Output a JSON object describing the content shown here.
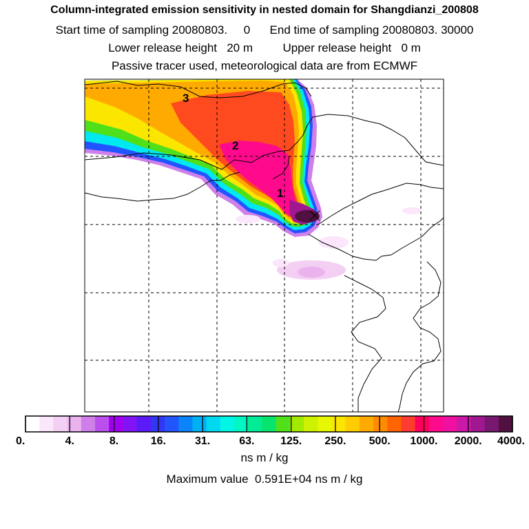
{
  "header": {
    "title": "Column-integrated emission sensitivity in nested domain for Shangdianzi_200808",
    "start_label": "Start time of sampling 20080803.",
    "start_value": "0",
    "end_label": "End time of sampling 20080803. 30000",
    "lower_label": "Lower release height",
    "lower_value": "20 m",
    "upper_label": "Upper release height",
    "upper_value": "0 m",
    "tracer_info": "Passive tracer used, meteorological data are from ECMWF"
  },
  "map": {
    "receptor": "Shangdianzi",
    "labels": [
      "1",
      "2",
      "3"
    ]
  },
  "colorbar": {
    "ticks": [
      "0.",
      "4.",
      "8.",
      "16.",
      "31.",
      "63.",
      "125.",
      "250.",
      "500.",
      "1000.",
      "2000.",
      "4000."
    ],
    "colors": [
      "#ffffff",
      "#fbe6fb",
      "#f4cff4",
      "#eab3ee",
      "#cf7fea",
      "#bb4fec",
      "#a100ef",
      "#8014f5",
      "#5a1bf8",
      "#3436f6",
      "#2255ff",
      "#0a83fb",
      "#00b0f5",
      "#00d8f0",
      "#00f5e6",
      "#00f7c3",
      "#00ec96",
      "#08e36d",
      "#4fe01a",
      "#a2ea00",
      "#ccf200",
      "#e6f700",
      "#fbe600",
      "#ffcc00",
      "#ffaa00",
      "#ff8c00",
      "#ff6400",
      "#ff3c30",
      "#ff005a",
      "#ff0a8c",
      "#ee10a0",
      "#cc18a8",
      "#a01890",
      "#781870",
      "#501040"
    ],
    "units": "ns m / kg"
  },
  "footer": {
    "max_label": "Maximum value",
    "max_value": "0.591E+04",
    "max_units": "ns m / kg"
  }
}
